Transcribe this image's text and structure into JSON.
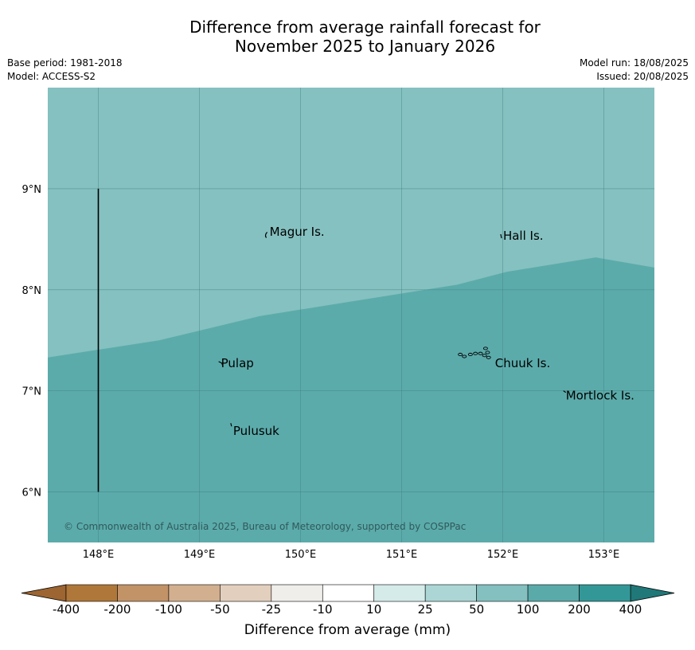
{
  "title_line1": "Difference from average rainfall forecast for",
  "title_line2": "November 2025 to January 2026",
  "meta_left": {
    "base_period": "Base period: 1981-2018",
    "model": "Model: ACCESS-S2"
  },
  "meta_right": {
    "model_run": "Model run: 18/08/2025",
    "issued": "Issued: 20/08/2025"
  },
  "map": {
    "lon_range": [
      147.5,
      153.5
    ],
    "lat_range": [
      5.5,
      10.0
    ],
    "lon_ticks": [
      {
        "value": 148,
        "label": "148°E"
      },
      {
        "value": 149,
        "label": "149°E"
      },
      {
        "value": 150,
        "label": "150°E"
      },
      {
        "value": 151,
        "label": "151°E"
      },
      {
        "value": 152,
        "label": "152°E"
      },
      {
        "value": 153,
        "label": "153°E"
      }
    ],
    "lat_ticks": [
      {
        "value": 9,
        "label": "9°N"
      },
      {
        "value": 8,
        "label": "8°N"
      },
      {
        "value": 7,
        "label": "7°N"
      },
      {
        "value": 6,
        "label": "6°N"
      }
    ],
    "colors": {
      "upper_region": "#85c1c0",
      "lower_region": "#5cabab",
      "gridline": "#3f7f80"
    },
    "boundary": [
      [
        147.5,
        7.33
      ],
      [
        148.6,
        7.5
      ],
      [
        149.6,
        7.74
      ],
      [
        150.6,
        7.9
      ],
      [
        151.55,
        8.05
      ],
      [
        152.05,
        8.18
      ],
      [
        152.92,
        8.32
      ],
      [
        153.5,
        8.22
      ]
    ],
    "vertical_line": {
      "lon": 148.0,
      "lat_from": 6.0,
      "lat_to": 9.0
    },
    "places": [
      {
        "name": "Magur Is.",
        "lon": 149.67,
        "lat": 8.57
      },
      {
        "name": "Hall Is.",
        "lon": 151.98,
        "lat": 8.53
      },
      {
        "name": "Pulap",
        "lon": 149.19,
        "lat": 7.27
      },
      {
        "name": "Chuuk Is.",
        "lon": 151.9,
        "lat": 7.27
      },
      {
        "name": "Mortlock Is.",
        "lon": 152.6,
        "lat": 6.95
      },
      {
        "name": "Pulusuk",
        "lon": 149.31,
        "lat": 6.6
      }
    ],
    "copyright": "© Commonwealth of Australia 2025, Bureau of Meteorology, supported by COSPPac"
  },
  "colorbar": {
    "title": "Difference from average (mm)",
    "bins": [
      "#b0773a",
      "#c29367",
      "#d2af8f",
      "#e3cfbd",
      "#f0eeea",
      "#ffffff",
      "#d5ebea",
      "#acd6d6",
      "#83c0bf",
      "#5aaaaa",
      "#339797"
    ],
    "extend_low_color": "#9c6531",
    "extend_high_color": "#207878",
    "labels": [
      "-400",
      "-200",
      "-100",
      "-50",
      "-25",
      "-10",
      "10",
      "25",
      "50",
      "100",
      "200",
      "400"
    ]
  }
}
